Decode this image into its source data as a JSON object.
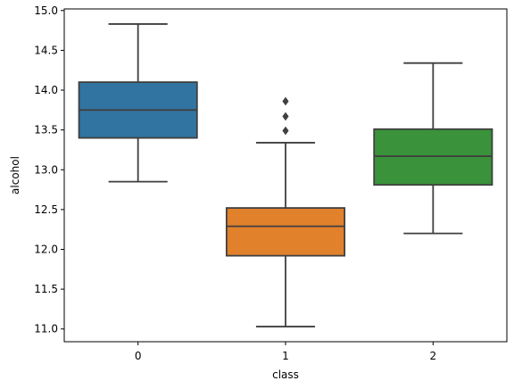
{
  "chart_data": {
    "type": "box",
    "title": "",
    "xlabel": "class",
    "ylabel": "alcohol",
    "categories": [
      "0",
      "1",
      "2"
    ],
    "ylim": [
      10.84,
      15.02
    ],
    "yticks": [
      "11.0",
      "11.5",
      "12.0",
      "12.5",
      "13.0",
      "13.5",
      "14.0",
      "14.5",
      "15.0"
    ],
    "grid": false,
    "boxes": [
      {
        "category": "0",
        "whisker_low": 12.85,
        "q1": 13.4,
        "median": 13.75,
        "q3": 14.1,
        "whisker_high": 14.83,
        "outliers": [],
        "color": "#3274a1"
      },
      {
        "category": "1",
        "whisker_low": 11.03,
        "q1": 11.92,
        "median": 12.29,
        "q3": 12.52,
        "whisker_high": 13.34,
        "outliers": [
          13.49,
          13.67,
          13.86
        ],
        "color": "#e1812c"
      },
      {
        "category": "2",
        "whisker_low": 12.2,
        "q1": 12.81,
        "median": 13.17,
        "q3": 13.51,
        "whisker_high": 14.34,
        "outliers": [],
        "color": "#3a923a"
      }
    ],
    "line_color": "#3f3f3f"
  }
}
